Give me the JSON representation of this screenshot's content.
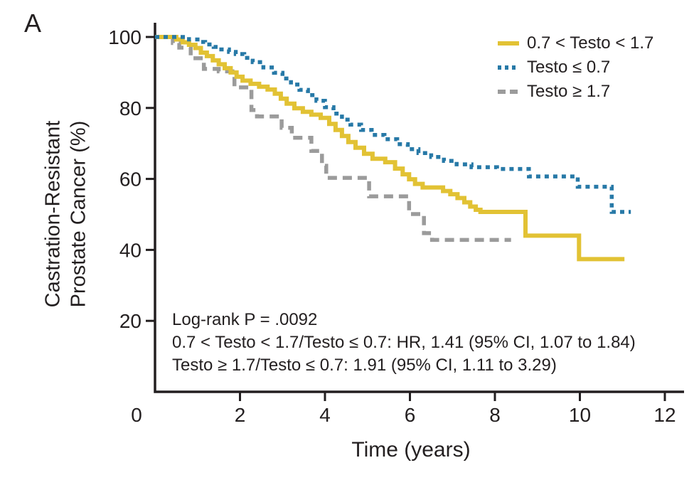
{
  "panel_label": "A",
  "chart_data": {
    "type": "line",
    "subtype": "kaplan_meier_step",
    "title": "",
    "xlabel": "Time (years)",
    "ylabel": "Castration-Resistant Prostate Cancer (%)",
    "ylabel_line1": "Castration-Resistant",
    "ylabel_line2": "Prostate Cancer (%)",
    "xlim": [
      0,
      12
    ],
    "ylim": [
      0,
      100
    ],
    "x_ticks": [
      0,
      2,
      4,
      6,
      8,
      10,
      12
    ],
    "y_ticks": [
      100,
      80,
      60,
      40,
      20
    ],
    "grid": false,
    "legend_position": "top-right",
    "axis_color": "#231f20",
    "annotation_lines": [
      "Log-rank P = .0092",
      "0.7 < Testo < 1.7/Testo ≤ 0.7: HR, 1.41 (95% CI, 1.07 to 1.84)",
      "Testo ≥ 1.7/Testo ≤ 0.7: 1.91 (95% CI, 1.11 to 3.29)"
    ],
    "series": [
      {
        "name": "0.7 < Testo < 1.7",
        "color": "#E2C234",
        "line_style": "solid",
        "steps": [
          [
            0,
            100
          ],
          [
            0.5,
            99.3
          ],
          [
            0.65,
            98.5
          ],
          [
            0.8,
            97.8
          ],
          [
            0.95,
            96.9
          ],
          [
            1.08,
            95.6
          ],
          [
            1.22,
            94.6
          ],
          [
            1.36,
            93.4
          ],
          [
            1.5,
            92.3
          ],
          [
            1.64,
            91.2
          ],
          [
            1.78,
            90.0
          ],
          [
            1.92,
            88.8
          ],
          [
            2.06,
            87.7
          ],
          [
            2.25,
            86.8
          ],
          [
            2.45,
            86.0
          ],
          [
            2.65,
            85.2
          ],
          [
            2.82,
            84.0
          ],
          [
            2.96,
            82.6
          ],
          [
            3.1,
            81.2
          ],
          [
            3.28,
            79.9
          ],
          [
            3.48,
            78.9
          ],
          [
            3.68,
            78.1
          ],
          [
            3.9,
            77.2
          ],
          [
            4.1,
            75.5
          ],
          [
            4.25,
            73.8
          ],
          [
            4.4,
            72.1
          ],
          [
            4.55,
            70.4
          ],
          [
            4.72,
            68.8
          ],
          [
            4.92,
            67.1
          ],
          [
            5.12,
            65.7
          ],
          [
            5.42,
            64.7
          ],
          [
            5.65,
            62.9
          ],
          [
            5.83,
            61.3
          ],
          [
            5.98,
            59.9
          ],
          [
            6.12,
            58.6
          ],
          [
            6.3,
            57.6
          ],
          [
            6.78,
            56.6
          ],
          [
            6.95,
            55.7
          ],
          [
            7.12,
            54.6
          ],
          [
            7.28,
            53.4
          ],
          [
            7.42,
            52.2
          ],
          [
            7.55,
            51.3
          ],
          [
            7.66,
            50.7
          ],
          [
            8.72,
            44.0
          ],
          [
            9.98,
            37.4
          ],
          [
            11.05,
            37.4
          ]
        ]
      },
      {
        "name": "Testo ≤ 0.7",
        "color": "#2779A7",
        "line_style": "dotted",
        "steps": [
          [
            0,
            100
          ],
          [
            0.8,
            99.3
          ],
          [
            1.0,
            98.6
          ],
          [
            1.18,
            97.9
          ],
          [
            1.38,
            97.2
          ],
          [
            1.56,
            96.5
          ],
          [
            1.74,
            95.8
          ],
          [
            1.9,
            95.2
          ],
          [
            2.1,
            94.1
          ],
          [
            2.3,
            92.9
          ],
          [
            2.55,
            91.4
          ],
          [
            2.8,
            89.9
          ],
          [
            3.0,
            88.3
          ],
          [
            3.2,
            86.6
          ],
          [
            3.4,
            85.1
          ],
          [
            3.6,
            83.6
          ],
          [
            3.8,
            82.0
          ],
          [
            4.0,
            80.2
          ],
          [
            4.2,
            78.4
          ],
          [
            4.4,
            76.7
          ],
          [
            4.6,
            75.3
          ],
          [
            4.85,
            73.8
          ],
          [
            5.1,
            72.4
          ],
          [
            5.4,
            71.2
          ],
          [
            5.7,
            69.8
          ],
          [
            5.95,
            68.4
          ],
          [
            6.2,
            67.3
          ],
          [
            6.5,
            66.2
          ],
          [
            6.8,
            65.1
          ],
          [
            7.1,
            64.1
          ],
          [
            7.45,
            63.3
          ],
          [
            8.05,
            62.8
          ],
          [
            8.8,
            60.7
          ],
          [
            9.95,
            57.8
          ],
          [
            10.75,
            50.7
          ],
          [
            11.2,
            50.7
          ]
        ]
      },
      {
        "name": "Testo ≥ 1.7",
        "color": "#9B9B9B",
        "line_style": "dashed",
        "steps": [
          [
            0,
            100
          ],
          [
            0.42,
            98.3
          ],
          [
            0.57,
            97.0
          ],
          [
            0.84,
            94.0
          ],
          [
            1.15,
            91.0
          ],
          [
            1.5,
            90.3
          ],
          [
            1.87,
            85.8
          ],
          [
            2.27,
            79.4
          ],
          [
            2.4,
            77.6
          ],
          [
            2.98,
            74.4
          ],
          [
            3.22,
            71.6
          ],
          [
            3.68,
            67.9
          ],
          [
            3.93,
            63.7
          ],
          [
            4.03,
            60.3
          ],
          [
            5.04,
            55.1
          ],
          [
            5.98,
            50.1
          ],
          [
            6.33,
            44.7
          ],
          [
            6.52,
            42.8
          ],
          [
            8.38,
            42.8
          ]
        ]
      }
    ]
  }
}
